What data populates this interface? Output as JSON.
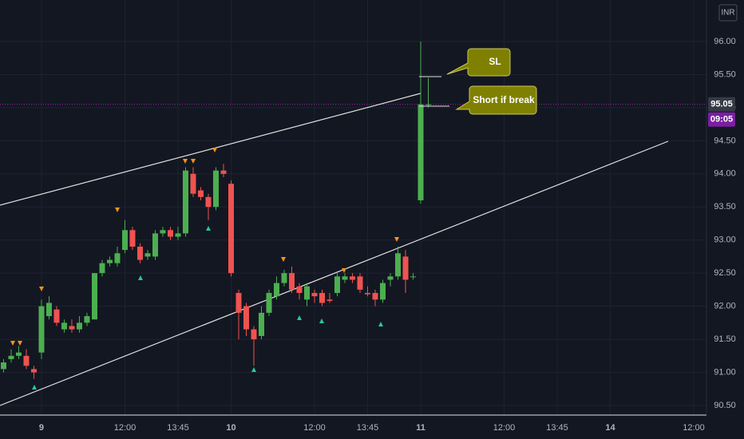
{
  "chart_data": {
    "type": "candlestick",
    "x": [
      -5,
      -4,
      -3,
      -2,
      -1,
      0,
      1,
      2,
      3,
      4,
      5,
      6,
      7,
      8,
      9,
      10,
      11,
      12,
      13,
      14,
      15,
      16,
      17,
      18,
      19,
      20,
      21,
      22,
      23,
      24,
      25,
      26,
      27,
      28,
      29,
      30,
      31,
      32,
      33,
      34,
      35,
      36,
      37,
      38,
      39,
      40,
      41,
      42,
      43,
      44,
      45,
      46,
      47,
      48,
      49,
      50,
      51
    ],
    "open": [
      91.05,
      91.2,
      91.25,
      91.25,
      91.05,
      91.3,
      91.85,
      91.95,
      91.65,
      91.7,
      91.65,
      91.75,
      91.8,
      92.5,
      92.65,
      92.65,
      92.85,
      93.15,
      92.9,
      92.75,
      92.75,
      93.1,
      93.15,
      93.05,
      93.1,
      94.0,
      93.75,
      93.65,
      93.5,
      94.05,
      93.85,
      92.2,
      92.0,
      91.65,
      91.55,
      91.9,
      92.15,
      92.35,
      92.5,
      92.3,
      92.1,
      92.2,
      92.2,
      92.1,
      92.2,
      92.4,
      92.45,
      92.45,
      92.2,
      92.2,
      92.1,
      92.4,
      92.45,
      92.75,
      92.45,
      93.6,
      95.05
    ],
    "high": [
      91.2,
      91.35,
      91.4,
      91.35,
      91.1,
      92.1,
      92.15,
      92.0,
      91.8,
      91.8,
      91.85,
      91.9,
      92.5,
      92.7,
      92.75,
      92.9,
      93.3,
      93.2,
      92.95,
      92.85,
      93.15,
      93.2,
      93.2,
      93.2,
      94.1,
      94.1,
      93.8,
      93.7,
      94.1,
      94.15,
      93.9,
      92.25,
      92.05,
      91.7,
      92.0,
      92.25,
      92.45,
      92.55,
      92.6,
      92.35,
      92.35,
      92.25,
      92.25,
      92.2,
      92.5,
      92.5,
      92.5,
      92.5,
      92.3,
      92.25,
      92.4,
      92.5,
      92.9,
      92.85,
      92.5,
      96.0,
      95.45
    ],
    "low": [
      91.0,
      91.15,
      91.2,
      91.05,
      90.9,
      91.2,
      91.8,
      91.7,
      91.6,
      91.6,
      91.6,
      91.7,
      91.8,
      92.45,
      92.6,
      92.6,
      92.8,
      92.85,
      92.65,
      92.7,
      92.7,
      93.05,
      93.0,
      93.0,
      93.05,
      93.65,
      93.6,
      93.3,
      93.45,
      93.95,
      92.45,
      91.5,
      91.55,
      91.1,
      91.5,
      91.85,
      92.1,
      92.3,
      92.2,
      92.1,
      92.0,
      92.05,
      92.0,
      92.05,
      92.15,
      92.35,
      92.35,
      92.2,
      92.15,
      92.0,
      92.05,
      92.3,
      92.4,
      92.2,
      92.4,
      93.55,
      95.0
    ],
    "close": [
      91.15,
      91.25,
      91.3,
      91.1,
      91.0,
      92.0,
      92.05,
      91.75,
      91.75,
      91.65,
      91.75,
      91.85,
      92.5,
      92.65,
      92.7,
      92.8,
      93.15,
      92.9,
      92.7,
      92.8,
      93.1,
      93.15,
      93.05,
      93.1,
      94.05,
      93.7,
      93.65,
      93.5,
      94.05,
      94.0,
      92.5,
      91.9,
      91.65,
      91.5,
      91.9,
      92.2,
      92.35,
      92.5,
      92.25,
      92.2,
      92.3,
      92.15,
      92.05,
      92.08,
      92.45,
      92.45,
      92.4,
      92.25,
      92.18,
      92.1,
      92.35,
      92.45,
      92.8,
      92.4,
      92.45,
      95.05,
      95.05
    ],
    "up_color": "#4caf50",
    "down_color": "#ef5350",
    "xlim": [
      -5.47,
      87.68
    ],
    "ylim": [
      90.355,
      96.627
    ],
    "xticks": [
      {
        "value": 0,
        "label": "9"
      },
      {
        "value": 11,
        "label": "12:00"
      },
      {
        "value": 18,
        "label": "13:45"
      },
      {
        "value": 25,
        "label": "10"
      },
      {
        "value": 36,
        "label": "12:00"
      },
      {
        "value": 43,
        "label": "13:45"
      },
      {
        "value": 50,
        "label": "11"
      },
      {
        "value": 61,
        "label": "12:00"
      },
      {
        "value": 68,
        "label": "13:45"
      },
      {
        "value": 75,
        "label": "14"
      },
      {
        "value": 86,
        "label": "12:00"
      }
    ],
    "yticks": [
      {
        "value": 90.5,
        "label": "90.50"
      },
      {
        "value": 91,
        "label": "91.00"
      },
      {
        "value": 91.5,
        "label": "91.50"
      },
      {
        "value": 92,
        "label": "92.00"
      },
      {
        "value": 92.5,
        "label": "92.50"
      },
      {
        "value": 93,
        "label": "93.00"
      },
      {
        "value": 93.5,
        "label": "93.50"
      },
      {
        "value": 94,
        "label": "94.00"
      },
      {
        "value": 94.5,
        "label": "94.50"
      },
      {
        "value": 95,
        "label": "95.00"
      },
      {
        "value": 95.5,
        "label": "95.50"
      },
      {
        "value": 96,
        "label": "96.00"
      }
    ],
    "grid": true,
    "last_price": {
      "value": 95.05,
      "label": "95.05"
    },
    "countdown": "09:05",
    "currency": "INR",
    "annotations": [
      "SL",
      "Short if break"
    ]
  }
}
